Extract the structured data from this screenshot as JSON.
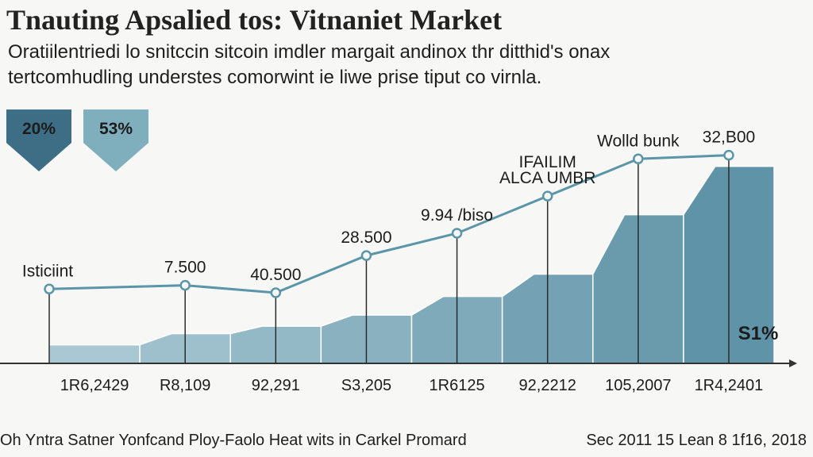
{
  "header": {
    "title": "Tnauting Apsalied tos: Vitnaniet Market",
    "subtitle_line1": "Oratiilentriedi lo snitccin sitcoin imdler margait andinox thr ditthid's onax",
    "subtitle_line2": "tertcomhudling understes comorwint ie liwe prise tiput co virnla."
  },
  "footer": {
    "left": "Oh Yntra Satner Yonfcand Ploy-Faolo Heat wits in Carkel Promard",
    "right": "Sec 2011 15 Lean 8 1f16, 2018"
  },
  "colors": {
    "line": "#5b95a8",
    "bar_dark": "#5f93a7",
    "bar_light": "#a9c8d3",
    "badge_dark": "#3d6e85",
    "badge_light": "#7faebd"
  },
  "badges": [
    {
      "text": "20%",
      "color": "#3d6e85"
    },
    {
      "text": "53%",
      "color": "#7faebd"
    }
  ],
  "chart_data": {
    "type": "area",
    "categories": [
      "1R6,2429",
      "R8,109",
      "92,291",
      "S3,205",
      "1R6125",
      "92,2212",
      "105,2007",
      "1R4,2401"
    ],
    "area_values": [
      5,
      8,
      10,
      13,
      18,
      24,
      40,
      53
    ],
    "line_values": [
      20,
      21,
      19,
      29,
      35,
      45,
      55,
      56
    ],
    "point_labels": [
      "Isticiint",
      "7.500",
      "40.500",
      "28.500",
      "9.94 /biso",
      "IFAILIM ALCA UMBR",
      "Wolld bunk",
      "32,B00"
    ],
    "bar_annotation": "S1%",
    "ylim": [
      0,
      70
    ]
  }
}
